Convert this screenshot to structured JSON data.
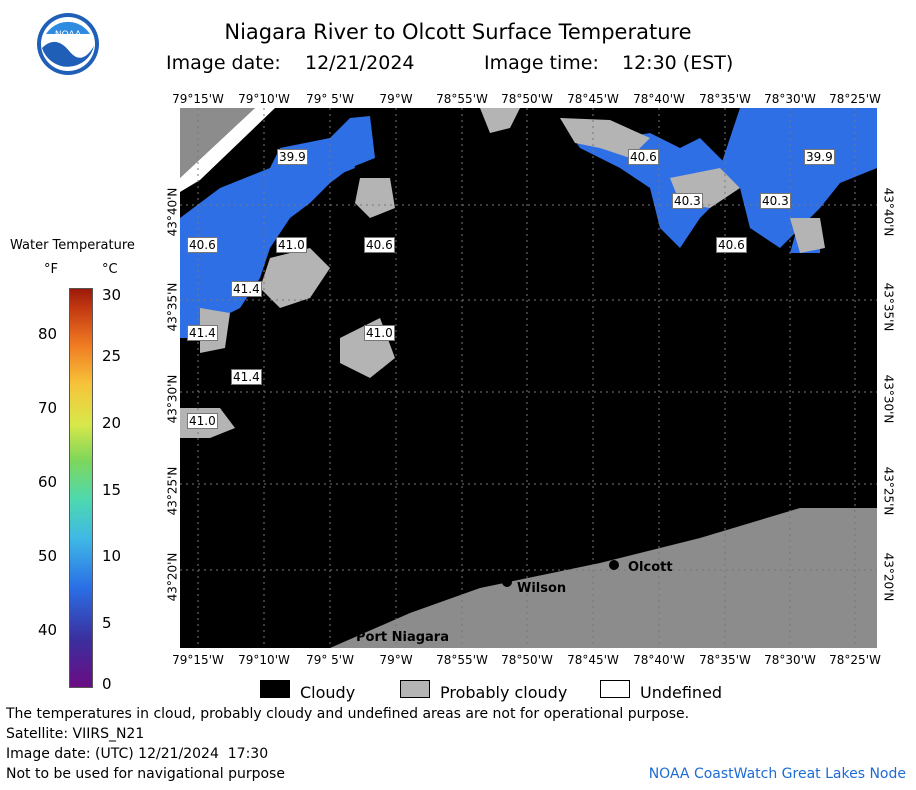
{
  "header": {
    "title": "Niagara River to Olcott Surface Temperature",
    "image_date_label": "Image date:",
    "image_date": "12/21/2024",
    "image_time_label": "Image time:",
    "image_time": "12:30 (EST)"
  },
  "map": {
    "lon_ticks": [
      "79°15'W",
      "79°10'W",
      "79° 5'W",
      "79°W",
      "78°55'W",
      "78°50'W",
      "78°45'W",
      "78°40'W",
      "78°35'W",
      "78°30'W",
      "78°25'W"
    ],
    "lat_ticks": [
      "43°40'N",
      "43°35'N",
      "43°30'N",
      "43°25'N",
      "43°20'N"
    ],
    "temperature_labels": [
      "39.9",
      "40.6",
      "40.3",
      "40.3",
      "39.9",
      "40.6",
      "41.0",
      "40.6",
      "40.6",
      "41.4",
      "41.4",
      "41.0",
      "41.4",
      "41.0"
    ],
    "places": [
      "Olcott",
      "Wilson",
      "Port Niagara"
    ],
    "colors": {
      "cloud": "#000000",
      "probably_cloudy": "#b4b4b4",
      "undefined": "#ffffff",
      "land": "#8c8c8c",
      "water": "#2f6fe6"
    }
  },
  "legend": {
    "title": "Water Temperature",
    "unit_f": "°F",
    "unit_c": "°C",
    "f_ticks": [
      "80",
      "70",
      "60",
      "50",
      "40"
    ],
    "c_ticks": [
      "30",
      "25",
      "20",
      "15",
      "10",
      "5",
      "0"
    ],
    "key": [
      "Cloudy",
      "Probably cloudy",
      "Undefined"
    ]
  },
  "footer": {
    "note": "The temperatures in cloud, probably cloudy and undefined areas are not for operational purpose.",
    "satellite": "Satellite: VIIRS_N21",
    "utc_date": "Image date: (UTC) 12/21/2024  17:30",
    "nav": "Not to be used for navigational purpose",
    "credit": "NOAA CoastWatch Great Lakes Node"
  }
}
